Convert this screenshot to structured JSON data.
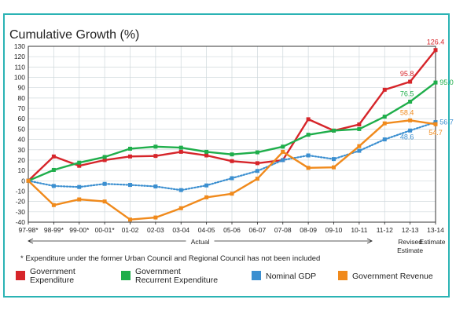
{
  "chart_data": {
    "type": "line",
    "title": "Cumulative Growth (%)",
    "categories": [
      "97-98*",
      "98-99*",
      "99-00*",
      "00-01*",
      "01-02",
      "02-03",
      "03-04",
      "04-05",
      "05-06",
      "06-07",
      "07-08",
      "08-09",
      "09-10",
      "10-11",
      "11-12",
      "12-13",
      "13-14"
    ],
    "ylim": [
      -40,
      130
    ],
    "yticks": [
      130,
      120,
      110,
      100,
      90,
      80,
      70,
      60,
      50,
      40,
      30,
      20,
      10,
      0,
      -10,
      -20,
      -30,
      -40
    ],
    "grid": true,
    "period_labels": {
      "actual": "Actual",
      "revised_estimate": [
        "Revised",
        "Estimate"
      ],
      "estimate": "Estimate"
    },
    "series": [
      {
        "name": "Government Expenditure",
        "legend_lines": [
          "Government",
          "Expenditure"
        ],
        "color": "#d6252a",
        "style": "solid",
        "values": [
          0,
          23.5,
          14.5,
          20,
          23.5,
          24,
          28,
          24.5,
          19,
          17,
          20,
          59.5,
          48.5,
          54.5,
          88,
          95.8,
          126.4
        ]
      },
      {
        "name": "Government Recurrent Expenditure",
        "legend_lines": [
          "Government",
          "Recurrent Expenditure"
        ],
        "color": "#1fae4b",
        "style": "solid",
        "values": [
          0,
          10.5,
          17.5,
          23,
          31,
          33,
          32,
          28,
          25.5,
          27.5,
          33,
          44.5,
          48.5,
          50,
          62,
          76.5,
          95.0
        ]
      },
      {
        "name": "Nominal GDP",
        "legend_lines": [
          "Nominal GDP"
        ],
        "color": "#3b8fd0",
        "style": "dotted",
        "values": [
          0,
          -5,
          -6,
          -3,
          -4,
          -5.5,
          -9,
          -4.5,
          2.5,
          9.5,
          20,
          24.5,
          21,
          29,
          40,
          48.6,
          56.7
        ]
      },
      {
        "name": "Government Revenue",
        "legend_lines": [
          "Government Revenue"
        ],
        "color": "#f08a1c",
        "style": "solid",
        "values": [
          0,
          -23.5,
          -18,
          -20,
          -37.5,
          -35.5,
          -26.5,
          -16,
          -12.5,
          2,
          28,
          12.5,
          13,
          33.5,
          55.5,
          58.4,
          54.7
        ]
      }
    ],
    "data_labels": [
      {
        "series": 0,
        "index": 15,
        "text": "95.8"
      },
      {
        "series": 0,
        "index": 16,
        "text": "126.4"
      },
      {
        "series": 1,
        "index": 15,
        "text": "76.5"
      },
      {
        "series": 1,
        "index": 16,
        "text": "95.0"
      },
      {
        "series": 2,
        "index": 15,
        "text": "48.6"
      },
      {
        "series": 2,
        "index": 16,
        "text": "56.7"
      },
      {
        "series": 3,
        "index": 15,
        "text": "58.4"
      },
      {
        "series": 3,
        "index": 16,
        "text": "54.7"
      }
    ],
    "footnote": "* Expenditure under the former Urban Council and Regional Council has not been included"
  }
}
